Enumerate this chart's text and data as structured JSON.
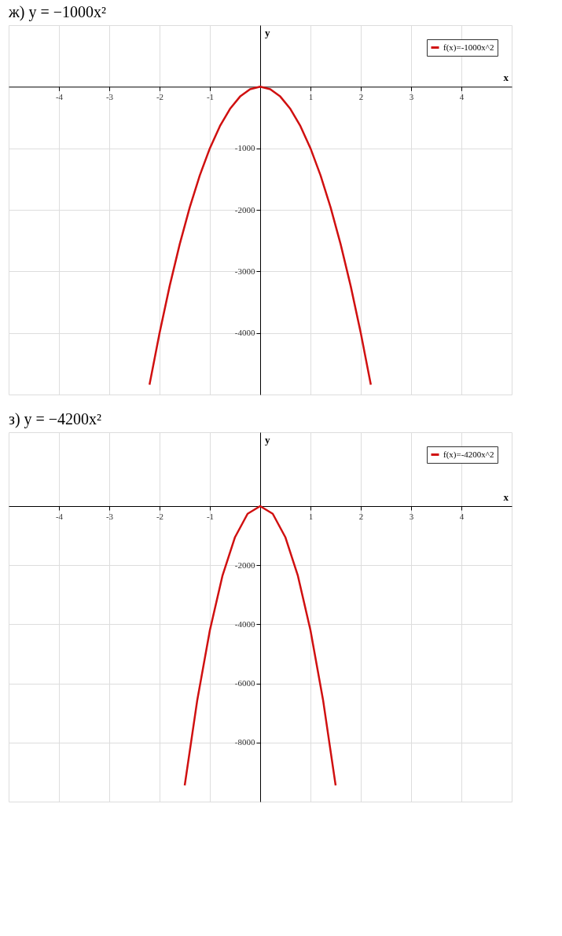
{
  "chart_data": [
    {
      "type": "line",
      "title": "ж) y = −1000x²",
      "xlabel": "x",
      "ylabel": "y",
      "xlim": [
        -5,
        5
      ],
      "ylim": [
        -5000,
        1000
      ],
      "xticks": [
        -4,
        -3,
        -2,
        -1,
        1,
        2,
        3,
        4
      ],
      "yticks": [
        -4000,
        -3000,
        -2000,
        -1000
      ],
      "grid": true,
      "legend": "top right",
      "series": [
        {
          "name": "f(x)=-1000x^2",
          "color": "#d01010",
          "x": [
            -2.2,
            -2.0,
            -1.8,
            -1.6,
            -1.4,
            -1.2,
            -1.0,
            -0.8,
            -0.6,
            -0.4,
            -0.2,
            0,
            0.2,
            0.4,
            0.6,
            0.8,
            1.0,
            1.2,
            1.4,
            1.6,
            1.8,
            2.0,
            2.2
          ],
          "values": [
            -4840,
            -4000,
            -3240,
            -2560,
            -1960,
            -1440,
            -1000,
            -640,
            -360,
            -160,
            -40,
            0,
            -40,
            -160,
            -360,
            -640,
            -1000,
            -1440,
            -1960,
            -2560,
            -3240,
            -4000,
            -4840
          ]
        }
      ]
    },
    {
      "type": "line",
      "title": "з) y = −4200x²",
      "xlabel": "x",
      "ylabel": "y",
      "xlim": [
        -5,
        5
      ],
      "ylim": [
        -10000,
        2500
      ],
      "xticks": [
        -4,
        -3,
        -2,
        -1,
        1,
        2,
        3,
        4
      ],
      "yticks": [
        -8000,
        -6000,
        -4000,
        -2000
      ],
      "grid": true,
      "legend": "top right",
      "series": [
        {
          "name": "f(x)=-4200x^2",
          "color": "#d01010",
          "x": [
            -1.5,
            -1.25,
            -1.0,
            -0.75,
            -0.5,
            -0.25,
            0,
            0.25,
            0.5,
            0.75,
            1.0,
            1.25,
            1.5
          ],
          "values": [
            -9450,
            -6560,
            -4200,
            -2360,
            -1050,
            -260,
            0,
            -260,
            -1050,
            -2360,
            -4200,
            -6560,
            -9450
          ]
        }
      ]
    }
  ]
}
